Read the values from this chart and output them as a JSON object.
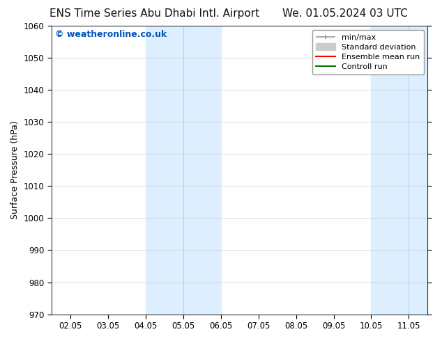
{
  "title_left": "ENS Time Series Abu Dhabi Intl. Airport",
  "title_right": "We. 01.05.2024 03 UTC",
  "ylabel": "Surface Pressure (hPa)",
  "ylim": [
    970,
    1060
  ],
  "yticks": [
    970,
    980,
    990,
    1000,
    1010,
    1020,
    1030,
    1040,
    1050,
    1060
  ],
  "xlim_start": -0.5,
  "xlim_end": 9.5,
  "xtick_labels": [
    "02.05",
    "03.05",
    "04.05",
    "05.05",
    "06.05",
    "07.05",
    "08.05",
    "09.05",
    "10.05",
    "11.05"
  ],
  "xtick_positions": [
    0,
    1,
    2,
    3,
    4,
    5,
    6,
    7,
    8,
    9
  ],
  "shaded_bands": [
    {
      "x_start": 2,
      "x_end": 4,
      "color": "#ddeeff"
    },
    {
      "x_start": 8,
      "x_end": 9.5,
      "color": "#ddeeff"
    }
  ],
  "shaded_dividers": [
    3,
    9
  ],
  "watermark_text": "© weatheronline.co.uk",
  "watermark_color": "#0055bb",
  "watermark_fontsize": 9,
  "legend_entries": [
    {
      "label": "min/max"
    },
    {
      "label": "Standard deviation"
    },
    {
      "label": "Ensemble mean run"
    },
    {
      "label": "Controll run"
    }
  ],
  "legend_line_colors": [
    "#999999",
    "#cccccc",
    "#ff0000",
    "#007700"
  ],
  "background_color": "#ffffff",
  "plot_bg_color": "#ffffff",
  "grid_color": "#cccccc",
  "spine_color": "#333333",
  "title_fontsize": 11,
  "axis_label_fontsize": 9,
  "tick_fontsize": 8.5,
  "legend_fontsize": 8
}
